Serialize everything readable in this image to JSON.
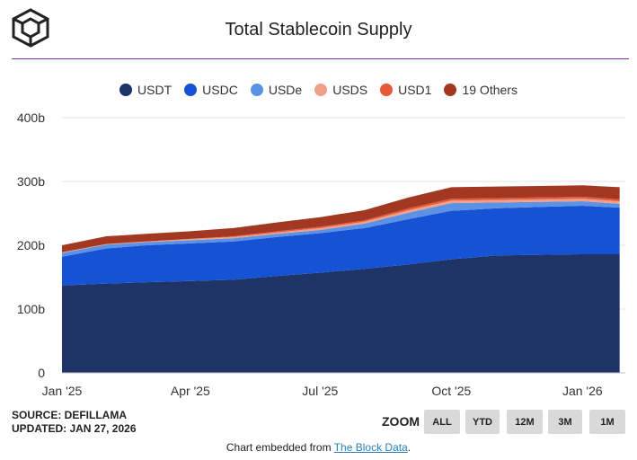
{
  "header": {
    "title": "Total Stablecoin Supply"
  },
  "legend": [
    {
      "label": "USDT",
      "color": "#1e3366"
    },
    {
      "label": "USDC",
      "color": "#1652d4"
    },
    {
      "label": "USDe",
      "color": "#5c92e6"
    },
    {
      "label": "USDS",
      "color": "#f0a088"
    },
    {
      "label": "USD1",
      "color": "#e8583a"
    },
    {
      "label": "19 Others",
      "color": "#a33822"
    }
  ],
  "chart_data": {
    "type": "area",
    "stacked": true,
    "title": "Total Stablecoin Supply",
    "xlabel": "",
    "ylabel": "",
    "ylim": [
      0,
      400
    ],
    "y_ticks": [
      "0",
      "100b",
      "200b",
      "300b",
      "400b"
    ],
    "x_ticks": [
      "Jan '25",
      "Apr '25",
      "Jul '25",
      "Oct '25",
      "Jan '26"
    ],
    "x": [
      "2025-01-01",
      "2025-02-01",
      "2025-03-01",
      "2025-04-01",
      "2025-05-01",
      "2025-06-01",
      "2025-07-01",
      "2025-08-01",
      "2025-09-01",
      "2025-10-01",
      "2025-11-01",
      "2025-12-01",
      "2026-01-01",
      "2026-01-27"
    ],
    "series": [
      {
        "name": "USDT",
        "color": "#1e3366",
        "values": [
          137,
          140,
          142,
          144,
          146,
          152,
          157,
          163,
          170,
          178,
          184,
          185,
          186,
          186
        ]
      },
      {
        "name": "USDC",
        "color": "#1652d4",
        "values": [
          45,
          55,
          58,
          59,
          60,
          61,
          62,
          64,
          71,
          76,
          74,
          75,
          76,
          73
        ]
      },
      {
        "name": "USDe",
        "color": "#5c92e6",
        "values": [
          6,
          6,
          5,
          5,
          5,
          5,
          5,
          7,
          10,
          12,
          9,
          8,
          7,
          6
        ]
      },
      {
        "name": "USDS",
        "color": "#f0a088",
        "values": [
          1,
          1,
          1,
          2,
          2,
          2,
          3,
          3,
          4,
          4,
          4,
          4,
          4,
          4
        ]
      },
      {
        "name": "USD1",
        "color": "#e8583a",
        "values": [
          0,
          0,
          0,
          0,
          1,
          2,
          2,
          2,
          3,
          3,
          3,
          3,
          3,
          3
        ]
      },
      {
        "name": "19 Others",
        "color": "#a33822",
        "values": [
          11,
          12,
          12,
          12,
          13,
          14,
          15,
          16,
          17,
          18,
          18,
          18,
          18,
          19
        ]
      }
    ],
    "grid": true,
    "legend_position": "top-center"
  },
  "footer": {
    "source": "SOURCE: DEFILLAMA",
    "updated": "UPDATED: JAN 27, 2026",
    "zoom_label": "ZOOM",
    "zoom_buttons": [
      "ALL",
      "YTD",
      "12M",
      "3M",
      "1M"
    ],
    "embed_text": "Chart embedded from ",
    "embed_link": "The Block Data",
    "embed_suffix": "."
  }
}
